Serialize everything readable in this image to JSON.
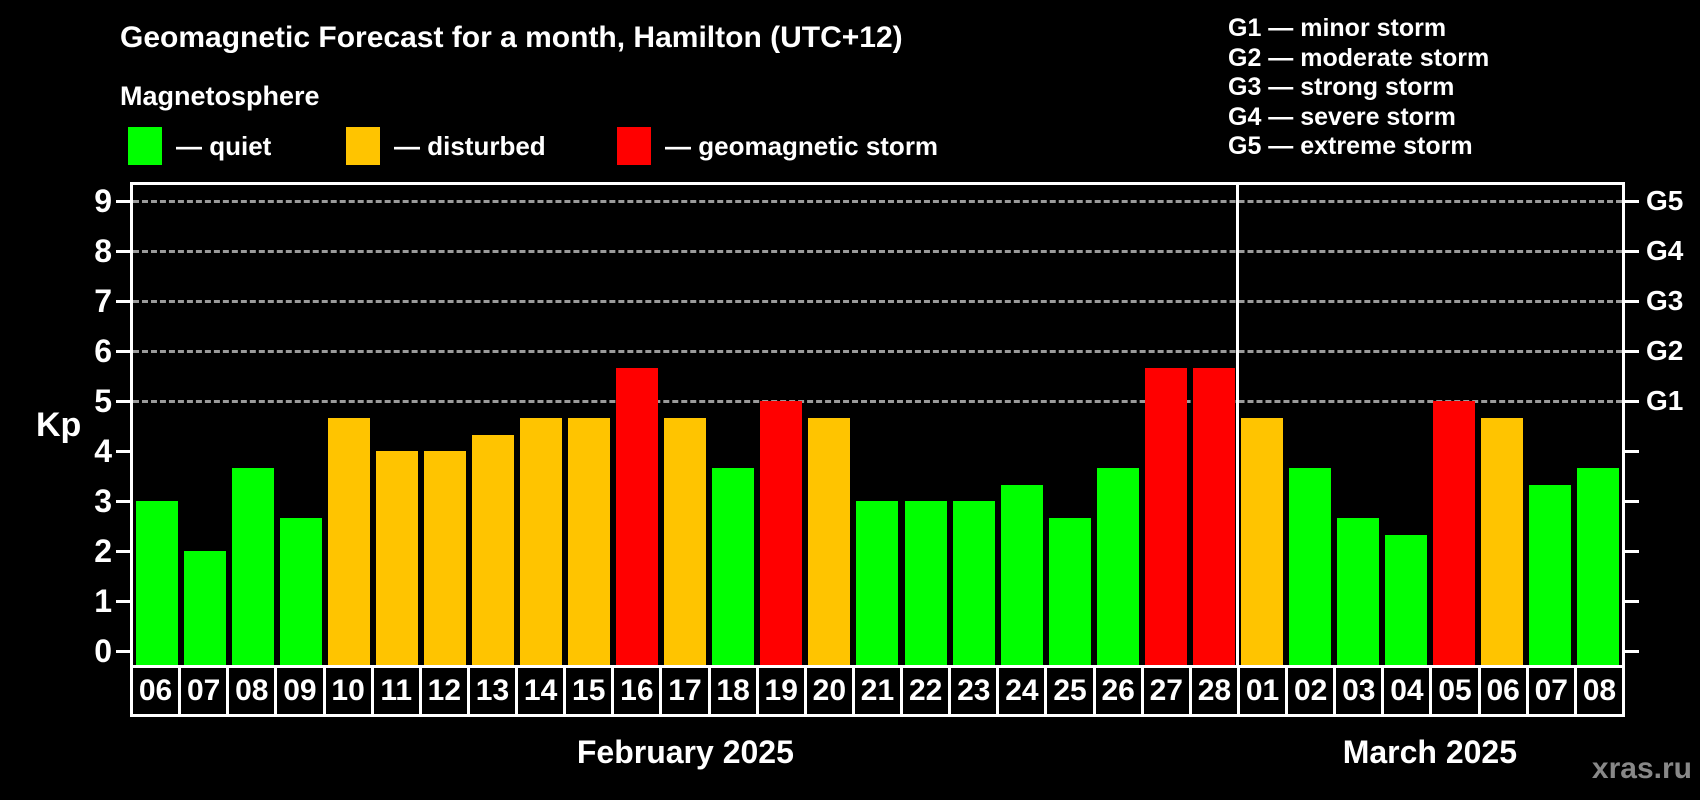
{
  "header": {
    "title": "Geomagnetic Forecast for a month, Hamilton (UTC+12)",
    "subtitle": "Magnetosphere"
  },
  "legend": {
    "items": [
      {
        "name": "quiet",
        "label": "— quiet",
        "color": "#00ff00"
      },
      {
        "name": "disturbed",
        "label": "— disturbed",
        "color": "#ffc400"
      },
      {
        "name": "storm",
        "label": "— geomagnetic storm",
        "color": "#ff0000"
      }
    ]
  },
  "storm_scale_legend": {
    "lines": [
      "G1 — minor storm",
      "G2 — moderate storm",
      "G3 — strong storm",
      "G4 — severe storm",
      "G5 — extreme storm"
    ]
  },
  "watermark": "xras.ru",
  "chart_data": {
    "type": "bar",
    "ylabel": "Kp",
    "ylim": [
      0,
      9
    ],
    "yticks_left": [
      0,
      1,
      2,
      3,
      4,
      5,
      6,
      7,
      8,
      9
    ],
    "gridlines_at": [
      5,
      6,
      7,
      8,
      9
    ],
    "grid": "dashed horizontal lines at Kp 5-9 only",
    "legend_position": "top",
    "right_axis": [
      {
        "label": "G1",
        "kp": 5
      },
      {
        "label": "G2",
        "kp": 6
      },
      {
        "label": "G3",
        "kp": 7
      },
      {
        "label": "G4",
        "kp": 8
      },
      {
        "label": "G5",
        "kp": 9
      }
    ],
    "months": [
      {
        "label": "February 2025",
        "start_index": 0,
        "days": 23
      },
      {
        "label": "March 2025",
        "start_index": 23,
        "days": 8
      }
    ],
    "categories": [
      "06",
      "07",
      "08",
      "09",
      "10",
      "11",
      "12",
      "13",
      "14",
      "15",
      "16",
      "17",
      "18",
      "19",
      "20",
      "21",
      "22",
      "23",
      "24",
      "25",
      "26",
      "27",
      "28",
      "01",
      "02",
      "03",
      "04",
      "05",
      "06",
      "07",
      "08"
    ],
    "values": [
      3.0,
      2.0,
      3.67,
      2.67,
      4.67,
      4.0,
      4.0,
      4.33,
      4.67,
      4.67,
      5.67,
      4.67,
      3.67,
      5.0,
      4.67,
      3.0,
      3.0,
      3.0,
      3.33,
      2.67,
      3.67,
      5.67,
      5.67,
      4.67,
      3.67,
      2.67,
      2.33,
      5.0,
      4.67,
      3.33,
      3.67
    ],
    "statuses": [
      "quiet",
      "quiet",
      "quiet",
      "quiet",
      "disturbed",
      "disturbed",
      "disturbed",
      "disturbed",
      "disturbed",
      "disturbed",
      "storm",
      "disturbed",
      "quiet",
      "storm",
      "disturbed",
      "quiet",
      "quiet",
      "quiet",
      "quiet",
      "quiet",
      "quiet",
      "storm",
      "storm",
      "disturbed",
      "quiet",
      "quiet",
      "quiet",
      "storm",
      "disturbed",
      "quiet",
      "quiet"
    ],
    "status_colors": {
      "quiet": "#00ff00",
      "disturbed": "#ffc400",
      "storm": "#ff0000"
    }
  }
}
